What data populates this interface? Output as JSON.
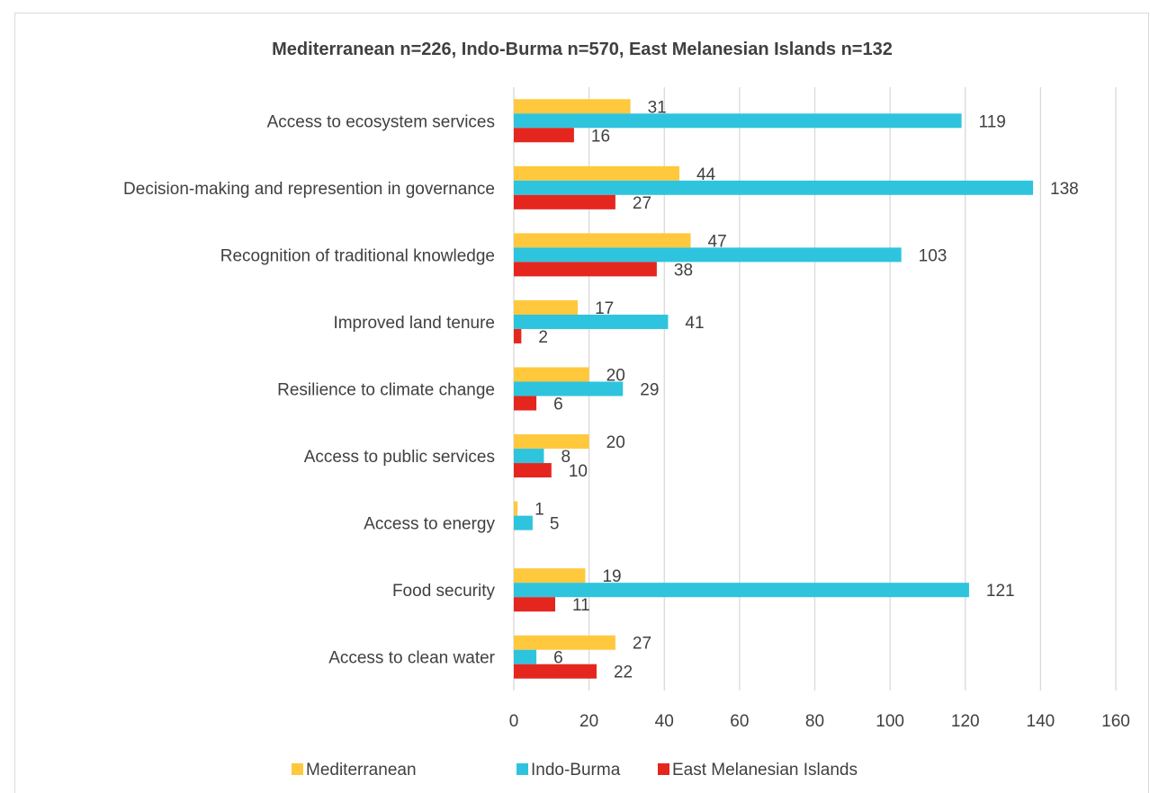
{
  "chart_data": {
    "type": "bar",
    "orientation": "horizontal",
    "title": "Mediterranean n=226, Indo-Burma n=570, East Melanesian Islands n=132",
    "xlabel": "",
    "ylabel": "",
    "xlim": [
      0,
      160
    ],
    "x_ticks": [
      "0",
      "20",
      "40",
      "60",
      "80",
      "100",
      "120",
      "140",
      "160"
    ],
    "grid": "vertical",
    "legend": "bottom",
    "categories": [
      "Access to ecosystem services",
      "Decision-making and represention in governance",
      "Recognition of traditional knowledge",
      "Improved land tenure",
      "Resilience to climate change",
      "Access to public services",
      "Access to energy",
      "Food security",
      "Access to clean water"
    ],
    "series": [
      {
        "name": "Mediterranean",
        "color": "#FFC83D",
        "values": [
          31,
          44,
          47,
          17,
          20,
          20,
          1,
          19,
          27
        ]
      },
      {
        "name": "Indo-Burma",
        "color": "#2EC4DE",
        "values": [
          119,
          138,
          103,
          41,
          29,
          8,
          5,
          121,
          6
        ]
      },
      {
        "name": "East Melanesian Islands",
        "color": "#E5261F",
        "values": [
          16,
          27,
          38,
          2,
          6,
          10,
          null,
          11,
          22
        ]
      }
    ]
  }
}
